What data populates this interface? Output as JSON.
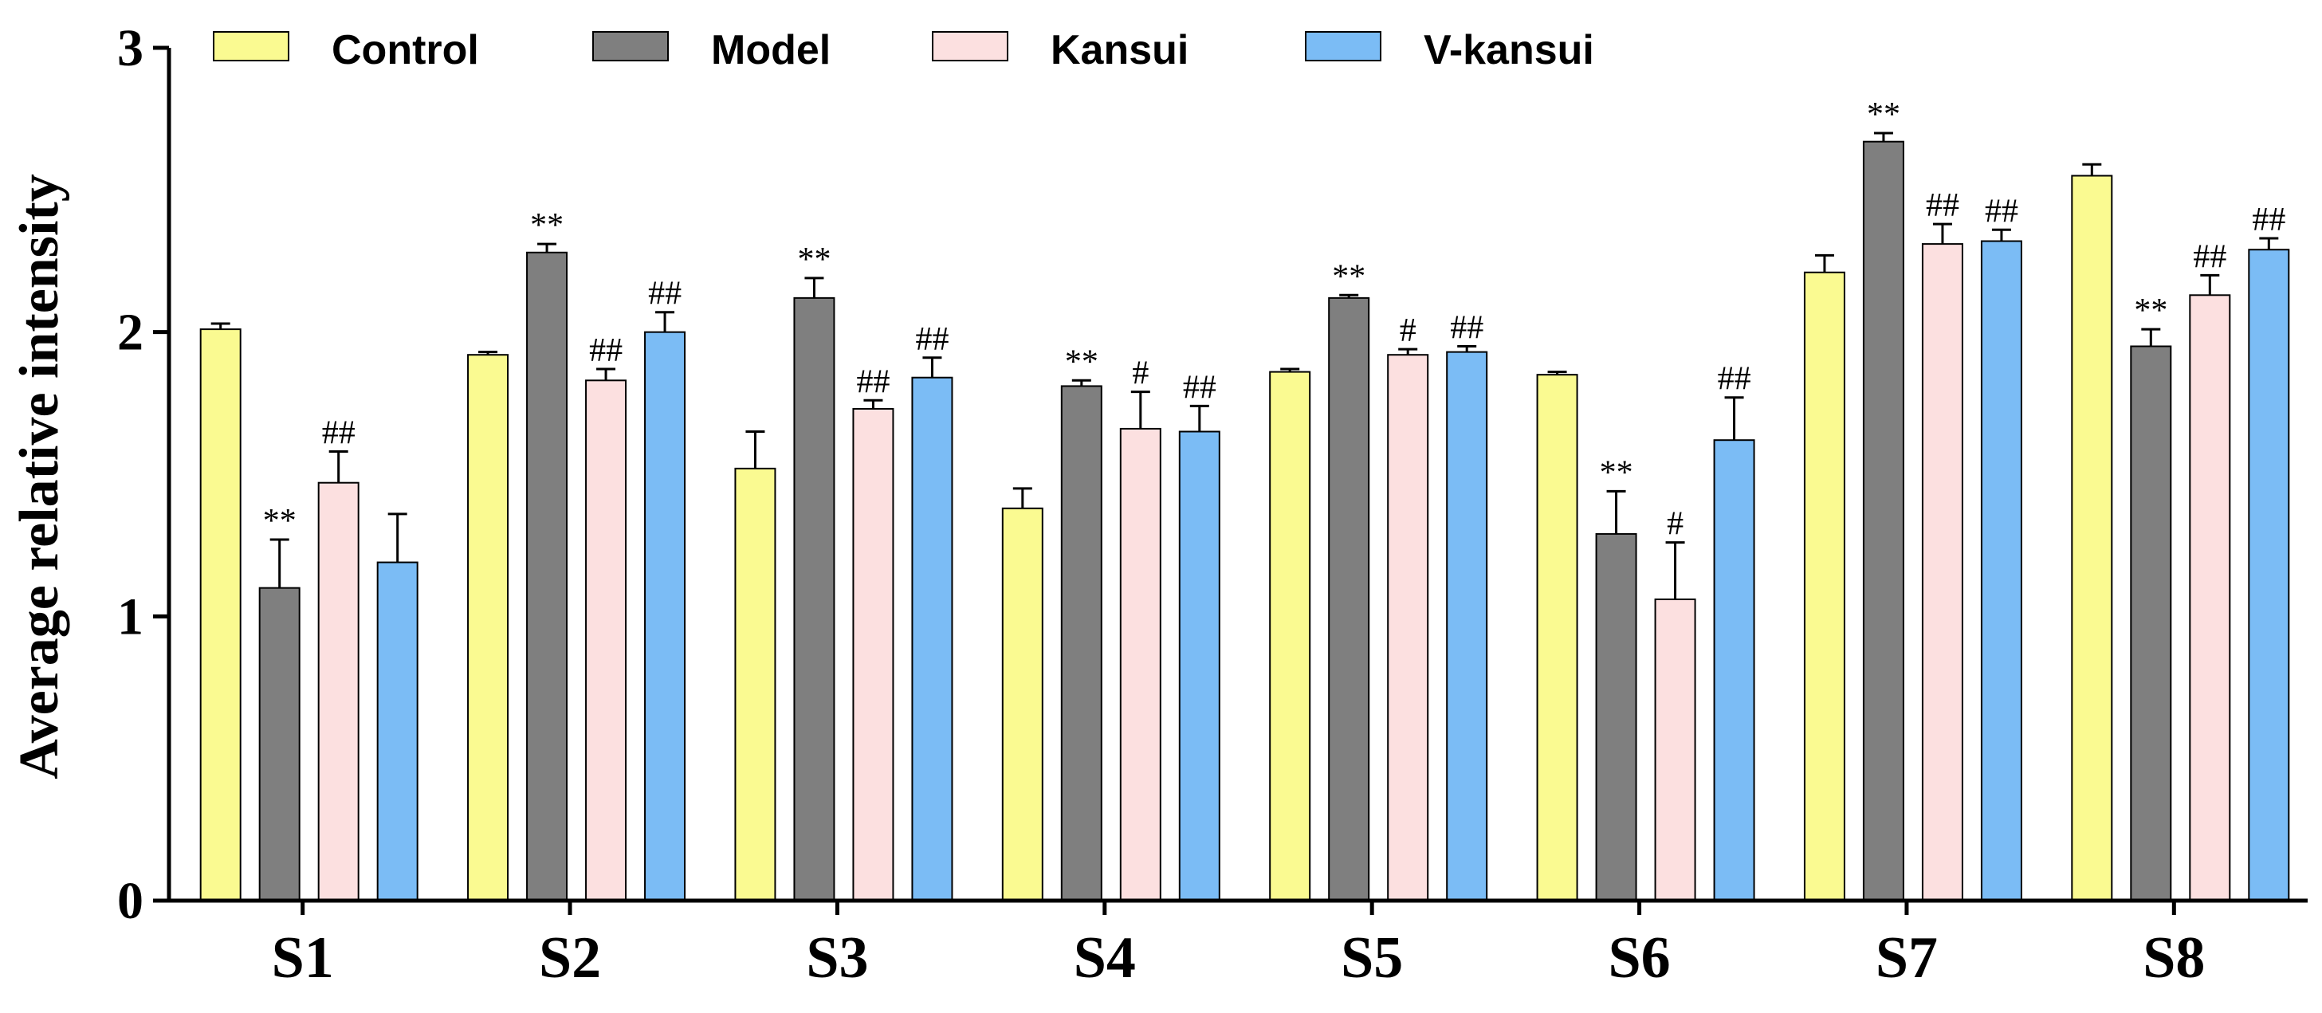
{
  "chart_data": {
    "type": "bar",
    "title": "",
    "xlabel": "",
    "ylabel": "Average relative intensity",
    "ylim": [
      0,
      3
    ],
    "yticks": [
      "0",
      "1",
      "2",
      "3"
    ],
    "categories": [
      "S1",
      "S2",
      "S3",
      "S4",
      "S5",
      "S6",
      "S7",
      "S8"
    ],
    "legend_position": "top",
    "series": [
      {
        "name": "Control",
        "color": "#fafa91",
        "values": [
          2.01,
          1.92,
          1.52,
          1.38,
          1.86,
          1.85,
          2.21,
          2.55
        ],
        "errors": [
          0.02,
          0.01,
          0.13,
          0.07,
          0.01,
          0.01,
          0.06,
          0.04
        ],
        "annotations": [
          "",
          "",
          "",
          "",
          "",
          "",
          "",
          ""
        ]
      },
      {
        "name": "Model",
        "color": "#7f7f7f",
        "values": [
          1.1,
          2.28,
          2.12,
          1.81,
          2.12,
          1.29,
          2.67,
          1.95
        ],
        "errors": [
          0.17,
          0.03,
          0.07,
          0.02,
          0.01,
          0.15,
          0.03,
          0.06
        ],
        "annotations": [
          "**",
          "**",
          "**",
          "**",
          "**",
          "**",
          "**",
          "**"
        ]
      },
      {
        "name": "Kansui",
        "color": "#fce0e0",
        "values": [
          1.47,
          1.83,
          1.73,
          1.66,
          1.92,
          1.06,
          2.31,
          2.13
        ],
        "errors": [
          0.11,
          0.04,
          0.03,
          0.13,
          0.02,
          0.2,
          0.07,
          0.07
        ],
        "annotations": [
          "##",
          "##",
          "##",
          "#",
          "#",
          "#",
          "##",
          "##"
        ]
      },
      {
        "name": "V-kansui",
        "color": "#7bbcf5",
        "values": [
          1.19,
          2.0,
          1.84,
          1.65,
          1.93,
          1.62,
          2.32,
          2.29
        ],
        "errors": [
          0.17,
          0.07,
          0.07,
          0.09,
          0.02,
          0.15,
          0.04,
          0.04
        ],
        "annotations": [
          "",
          "##",
          "##",
          "##",
          "##",
          "##",
          "##",
          "##"
        ]
      }
    ]
  }
}
